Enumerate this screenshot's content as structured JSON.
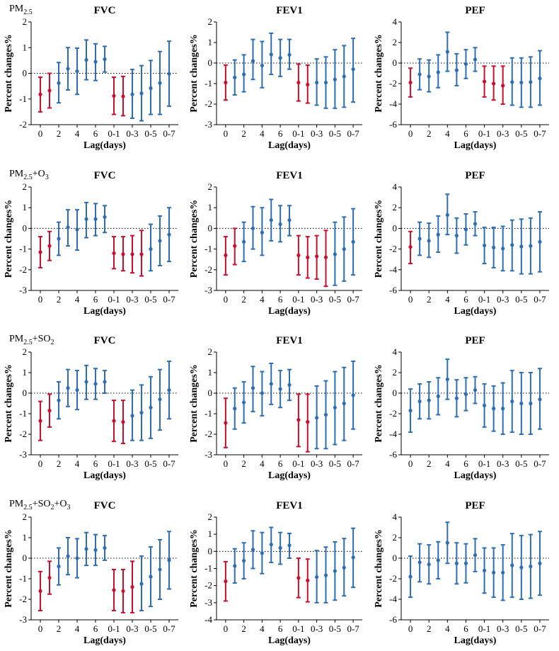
{
  "colors": {
    "significant": "#c8102e",
    "nonsignificant": "#2e6db4",
    "zero_line": "#000000"
  },
  "lag_categories": [
    "0",
    "1",
    "2",
    "3",
    "4",
    "5",
    "6",
    "7",
    "0-1",
    "0-2",
    "0-3",
    "0-4",
    "0-5",
    "0-6",
    "0-7"
  ],
  "tick_labels": [
    "0",
    "2",
    "4",
    "6",
    "0-1",
    "0-3",
    "0-5",
    "0-7"
  ],
  "xlabel": "Lag(days)",
  "ylabel": "Percent changes%",
  "chart_data": [
    {
      "model": "PM2.5",
      "row_label": {
        "base": "PM",
        "sub": "2.5",
        "suffix": ""
      },
      "panels": [
        {
          "title": "FVC",
          "type": "scatter",
          "ylim": [
            -2,
            2
          ],
          "yticks": [
            -2,
            -1,
            0,
            1,
            2
          ],
          "est": [
            -0.82,
            -0.67,
            -0.38,
            0.18,
            0.08,
            0.52,
            0.45,
            0.55,
            -0.88,
            -0.9,
            -0.82,
            -0.78,
            -0.58,
            -0.38,
            -0.02
          ],
          "lo": [
            -1.5,
            -1.35,
            -1.15,
            -0.65,
            -0.82,
            -0.25,
            -0.28,
            0.05,
            -1.6,
            -1.65,
            -1.75,
            -1.85,
            -1.6,
            -1.6,
            -1.28
          ],
          "hi": [
            -0.15,
            0.0,
            0.42,
            1.0,
            0.98,
            1.3,
            1.15,
            1.05,
            -0.15,
            -0.12,
            0.15,
            0.3,
            0.5,
            0.85,
            1.25
          ],
          "sig": [
            1,
            1,
            0,
            0,
            0,
            0,
            0,
            0,
            1,
            1,
            0,
            0,
            0,
            0,
            0
          ]
        },
        {
          "title": "FEV1",
          "type": "scatter",
          "ylim": [
            -3,
            2
          ],
          "yticks": [
            -3,
            -2,
            -1,
            0,
            1,
            2
          ],
          "est": [
            -0.95,
            -0.7,
            -0.55,
            0.1,
            -0.12,
            0.42,
            0.25,
            0.4,
            -0.95,
            -1.05,
            -0.95,
            -0.95,
            -0.8,
            -0.65,
            -0.3
          ],
          "lo": [
            -1.8,
            -1.55,
            -1.4,
            -0.8,
            -1.2,
            -0.55,
            -0.65,
            -0.3,
            -1.85,
            -1.95,
            -2.05,
            -2.2,
            -2.2,
            -2.15,
            -1.9
          ],
          "hi": [
            -0.1,
            0.15,
            0.4,
            1.15,
            1.05,
            1.45,
            1.15,
            1.15,
            -0.05,
            -0.1,
            0.2,
            0.3,
            0.65,
            0.85,
            1.2
          ],
          "sig": [
            1,
            0,
            0,
            0,
            0,
            0,
            0,
            0,
            1,
            1,
            0,
            0,
            0,
            0,
            0
          ]
        },
        {
          "title": "PEF",
          "type": "scatter",
          "ylim": [
            -6,
            4
          ],
          "yticks": [
            -6,
            -4,
            -2,
            0,
            2,
            4
          ],
          "est": [
            -1.9,
            -1.1,
            -1.3,
            -0.9,
            1.1,
            -0.7,
            -0.1,
            0.35,
            -1.8,
            -2.0,
            -2.2,
            -1.85,
            -1.9,
            -1.85,
            -1.5
          ],
          "lo": [
            -3.3,
            -2.6,
            -2.8,
            -2.4,
            -0.8,
            -2.2,
            -1.5,
            -0.8,
            -3.3,
            -3.6,
            -4.0,
            -4.1,
            -4.3,
            -4.3,
            -4.1
          ],
          "hi": [
            -0.5,
            0.4,
            0.3,
            0.8,
            3.0,
            0.9,
            1.3,
            1.5,
            -0.3,
            -0.3,
            -0.3,
            0.5,
            0.5,
            0.6,
            1.2
          ],
          "sig": [
            1,
            0,
            0,
            0,
            0,
            0,
            0,
            0,
            1,
            1,
            1,
            0,
            0,
            0,
            0
          ]
        }
      ]
    },
    {
      "model": "PM2.5+O3",
      "row_label": {
        "base": "PM",
        "sub": "2.5",
        "suffix": "+O",
        "sub2": "3"
      },
      "panels": [
        {
          "title": "FVC",
          "type": "scatter",
          "ylim": [
            -3,
            2
          ],
          "yticks": [
            -3,
            -2,
            -1,
            0,
            1,
            2
          ],
          "est": [
            -1.15,
            -0.85,
            -0.5,
            0.05,
            -0.05,
            0.45,
            0.45,
            0.55,
            -1.2,
            -1.25,
            -1.25,
            -1.25,
            -1.0,
            -0.6,
            -0.3
          ],
          "lo": [
            -1.9,
            -1.55,
            -1.3,
            -0.85,
            -1.05,
            -0.45,
            -0.35,
            -0.2,
            -1.95,
            -2.05,
            -2.15,
            -2.3,
            -2.05,
            -1.8,
            -1.6
          ],
          "hi": [
            -0.4,
            -0.15,
            0.3,
            0.9,
            0.9,
            1.25,
            1.2,
            1.1,
            -0.4,
            -0.4,
            -0.35,
            -0.1,
            0.2,
            0.6,
            1.0
          ],
          "sig": [
            1,
            1,
            0,
            0,
            0,
            0,
            0,
            0,
            1,
            1,
            1,
            1,
            0,
            0,
            0
          ]
        },
        {
          "title": "FEV1",
          "type": "scatter",
          "ylim": [
            -3,
            2
          ],
          "yticks": [
            -3,
            -2,
            -1,
            0,
            1,
            2
          ],
          "est": [
            -1.3,
            -0.85,
            -0.65,
            0.0,
            -0.2,
            0.4,
            0.2,
            0.4,
            -1.3,
            -1.4,
            -1.35,
            -1.4,
            -1.25,
            -1.0,
            -0.65
          ],
          "lo": [
            -2.25,
            -1.75,
            -1.6,
            -1.0,
            -1.3,
            -0.6,
            -0.65,
            -0.35,
            -2.25,
            -2.4,
            -2.45,
            -2.8,
            -2.75,
            -2.55,
            -2.25
          ],
          "hi": [
            -0.4,
            0.0,
            0.3,
            1.05,
            1.0,
            1.4,
            1.1,
            1.1,
            -0.35,
            -0.4,
            -0.35,
            -0.1,
            0.3,
            0.55,
            0.95
          ],
          "sig": [
            1,
            1,
            0,
            0,
            0,
            0,
            0,
            0,
            1,
            1,
            1,
            1,
            0,
            0,
            0
          ]
        },
        {
          "title": "PEF",
          "type": "scatter",
          "ylim": [
            -6,
            4
          ],
          "yticks": [
            -6,
            -4,
            -2,
            0,
            2,
            4
          ],
          "est": [
            -1.8,
            -1.0,
            -1.2,
            -0.6,
            1.3,
            -0.7,
            -0.1,
            0.45,
            -1.65,
            -1.85,
            -1.95,
            -1.6,
            -1.75,
            -1.7,
            -1.3
          ],
          "lo": [
            -3.4,
            -2.6,
            -2.8,
            -2.3,
            -0.6,
            -2.4,
            -1.6,
            -0.7,
            -3.4,
            -3.8,
            -4.1,
            -4.1,
            -4.4,
            -4.4,
            -4.2
          ],
          "hi": [
            -0.3,
            0.6,
            0.5,
            1.2,
            3.3,
            1.0,
            1.4,
            1.6,
            0.1,
            0.1,
            0.2,
            0.8,
            0.9,
            1.0,
            1.6
          ],
          "sig": [
            1,
            0,
            0,
            0,
            0,
            0,
            0,
            0,
            0,
            0,
            0,
            0,
            0,
            0,
            0
          ]
        }
      ]
    },
    {
      "model": "PM2.5+SO2",
      "row_label": {
        "base": "PM",
        "sub": "2.5",
        "suffix": "+SO",
        "sub2": "2"
      },
      "panels": [
        {
          "title": "FVC",
          "type": "scatter",
          "ylim": [
            -3,
            2
          ],
          "yticks": [
            -3,
            -2,
            -1,
            0,
            1,
            2
          ],
          "est": [
            -1.35,
            -0.85,
            -0.35,
            0.25,
            0.15,
            0.55,
            0.45,
            0.55,
            -1.35,
            -1.4,
            -1.1,
            -0.95,
            -0.7,
            -0.3,
            0.15
          ],
          "lo": [
            -2.3,
            -1.65,
            -1.25,
            -0.65,
            -0.8,
            -0.3,
            -0.3,
            0.0,
            -2.35,
            -2.45,
            -2.3,
            -2.3,
            -2.2,
            -1.8,
            -1.25
          ],
          "hi": [
            -0.4,
            -0.05,
            0.55,
            1.15,
            1.1,
            1.35,
            1.2,
            1.1,
            -0.35,
            -0.35,
            0.15,
            0.4,
            0.8,
            1.15,
            1.55
          ],
          "sig": [
            1,
            1,
            0,
            0,
            0,
            0,
            0,
            0,
            1,
            1,
            0,
            0,
            0,
            0,
            0
          ]
        },
        {
          "title": "FEV1",
          "type": "scatter",
          "ylim": [
            -3,
            2
          ],
          "yticks": [
            -3,
            -2,
            -1,
            0,
            1,
            2
          ],
          "est": [
            -1.45,
            -0.75,
            -0.45,
            0.25,
            0.0,
            0.45,
            0.2,
            0.4,
            -1.3,
            -1.4,
            -1.2,
            -1.05,
            -0.7,
            -0.5,
            -0.1
          ],
          "lo": [
            -2.65,
            -1.75,
            -1.45,
            -0.9,
            -1.1,
            -0.55,
            -0.7,
            -0.35,
            -2.6,
            -2.85,
            -2.7,
            -2.7,
            -2.5,
            -2.3,
            -1.75
          ],
          "hi": [
            -0.25,
            0.25,
            0.55,
            1.3,
            1.05,
            1.45,
            1.1,
            1.15,
            -0.05,
            -0.05,
            0.35,
            0.6,
            1.05,
            1.25,
            1.55
          ],
          "sig": [
            1,
            0,
            0,
            0,
            0,
            0,
            0,
            0,
            1,
            1,
            0,
            0,
            0,
            0,
            0
          ]
        },
        {
          "title": "PEF",
          "type": "scatter",
          "ylim": [
            -6,
            4
          ],
          "yticks": [
            -6,
            -4,
            -2,
            0,
            2,
            4
          ],
          "est": [
            -1.7,
            -0.8,
            -0.7,
            -0.3,
            1.35,
            -0.5,
            -0.1,
            0.3,
            -1.2,
            -1.5,
            -1.5,
            -0.8,
            -1.0,
            -1.0,
            -0.6
          ],
          "lo": [
            -3.8,
            -2.5,
            -2.5,
            -2.1,
            -0.6,
            -2.3,
            -1.7,
            -1.0,
            -3.3,
            -3.7,
            -4.0,
            -3.8,
            -4.0,
            -4.0,
            -3.5
          ],
          "hi": [
            0.4,
            0.9,
            1.1,
            1.5,
            3.3,
            1.3,
            1.5,
            1.6,
            0.9,
            0.7,
            1.0,
            2.2,
            2.0,
            2.0,
            2.4
          ],
          "sig": [
            0,
            0,
            0,
            0,
            0,
            0,
            0,
            0,
            0,
            0,
            0,
            0,
            0,
            0,
            0
          ]
        }
      ]
    },
    {
      "model": "PM2.5+SO2+O3",
      "row_label": {
        "base": "PM",
        "sub": "2.5",
        "suffix": "+SO",
        "sub2": "2",
        "suffix2": "+O",
        "sub3": "3"
      },
      "panels": [
        {
          "title": "FVC",
          "type": "scatter",
          "ylim": [
            -3,
            2
          ],
          "yticks": [
            -3,
            -2,
            -1,
            0,
            1,
            2
          ],
          "est": [
            -1.6,
            -0.95,
            -0.4,
            0.1,
            0.0,
            0.45,
            0.4,
            0.5,
            -1.55,
            -1.6,
            -1.4,
            -1.25,
            -0.9,
            -0.55,
            -0.1
          ],
          "lo": [
            -2.55,
            -1.75,
            -1.3,
            -0.8,
            -0.95,
            -0.35,
            -0.35,
            -0.1,
            -2.55,
            -2.65,
            -2.65,
            -2.55,
            -2.35,
            -2.0,
            -1.5
          ],
          "hi": [
            -0.65,
            -0.15,
            0.5,
            1.0,
            0.95,
            1.25,
            1.15,
            1.1,
            -0.55,
            -0.55,
            -0.15,
            0.1,
            0.55,
            0.9,
            1.3
          ],
          "sig": [
            1,
            1,
            0,
            0,
            0,
            0,
            0,
            0,
            1,
            1,
            1,
            0,
            0,
            0,
            0
          ]
        },
        {
          "title": "FEV1",
          "type": "scatter",
          "ylim": [
            -4,
            2
          ],
          "yticks": [
            -4,
            -3,
            -2,
            -1,
            0,
            1,
            2
          ],
          "est": [
            -1.75,
            -0.85,
            -0.55,
            0.1,
            -0.1,
            0.4,
            0.2,
            0.35,
            -1.55,
            -1.7,
            -1.5,
            -1.4,
            -1.15,
            -0.95,
            -0.35
          ],
          "lo": [
            -2.9,
            -1.85,
            -1.6,
            -1.0,
            -1.3,
            -0.65,
            -0.75,
            -0.4,
            -2.7,
            -2.95,
            -3.0,
            -3.0,
            -2.85,
            -2.6,
            -2.1
          ],
          "hi": [
            -0.6,
            0.15,
            0.5,
            1.2,
            1.1,
            1.4,
            1.1,
            1.05,
            -0.4,
            -0.45,
            0.05,
            0.25,
            0.55,
            0.75,
            1.35
          ],
          "sig": [
            1,
            0,
            0,
            0,
            0,
            0,
            0,
            0,
            1,
            1,
            0,
            0,
            0,
            0,
            0
          ]
        },
        {
          "title": "PEF",
          "type": "scatter",
          "ylim": [
            -6,
            4
          ],
          "yticks": [
            -6,
            -4,
            -2,
            0,
            2,
            4
          ],
          "est": [
            -1.8,
            -0.4,
            -0.6,
            -0.2,
            1.5,
            -0.5,
            -0.5,
            0.3,
            -1.2,
            -1.4,
            -1.4,
            -0.7,
            -0.9,
            -0.8,
            -0.5
          ],
          "lo": [
            -3.8,
            -2.3,
            -2.5,
            -2.0,
            -0.5,
            -2.5,
            -2.4,
            -1.3,
            -3.4,
            -3.8,
            -4.1,
            -3.8,
            -4.0,
            -3.9,
            -3.6
          ],
          "hi": [
            0.2,
            1.4,
            1.3,
            1.6,
            3.5,
            1.5,
            1.4,
            1.9,
            1.0,
            1.0,
            1.3,
            2.4,
            2.2,
            2.3,
            2.6
          ],
          "sig": [
            0,
            0,
            0,
            0,
            0,
            0,
            0,
            0,
            0,
            0,
            0,
            0,
            0,
            0,
            0
          ]
        }
      ]
    }
  ]
}
